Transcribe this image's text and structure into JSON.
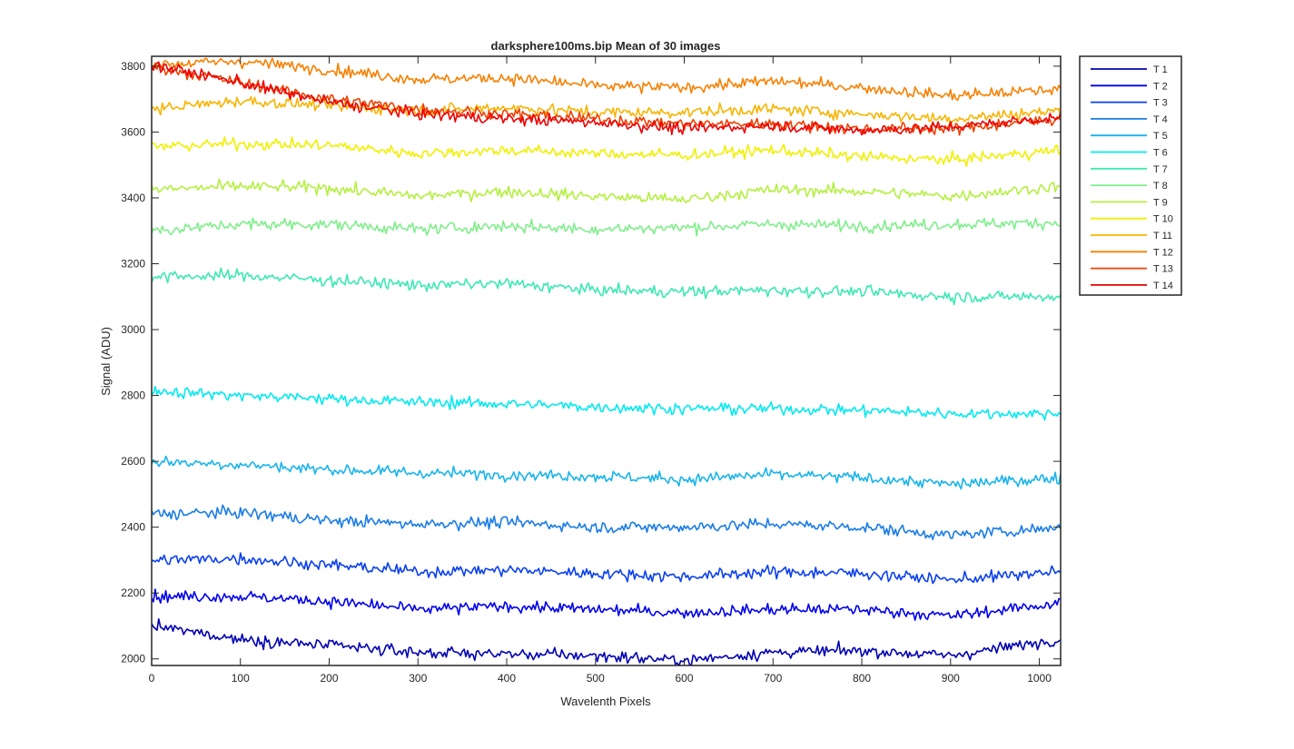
{
  "chart_data": {
    "type": "line",
    "title": "darksphere100ms.bip  Mean of 30 images",
    "xlabel": "Wavelenth Pixels",
    "ylabel": "Signal (ADU)",
    "xlim": [
      0,
      1024
    ],
    "ylim": [
      1980,
      3830
    ],
    "x_ticks": [
      0,
      100,
      200,
      300,
      400,
      500,
      600,
      700,
      800,
      900,
      1000
    ],
    "y_ticks": [
      2000,
      2200,
      2400,
      2600,
      2800,
      3000,
      3200,
      3400,
      3600,
      3800
    ],
    "grid": false,
    "legend_location": "outside-right",
    "x": [
      0,
      100,
      200,
      300,
      400,
      500,
      600,
      700,
      800,
      900,
      1024
    ],
    "noise_amplitude_adu": 12,
    "series": [
      {
        "name": "T 1",
        "color": "#0000b4",
        "values": [
          2100,
          2060,
          2040,
          2020,
          2015,
          2010,
          1995,
          2020,
          2025,
          2010,
          2060
        ]
      },
      {
        "name": "T 2",
        "color": "#0000ee",
        "values": [
          2190,
          2190,
          2175,
          2150,
          2160,
          2150,
          2140,
          2150,
          2150,
          2130,
          2170
        ]
      },
      {
        "name": "T 3",
        "color": "#0a40f0",
        "values": [
          2300,
          2305,
          2285,
          2265,
          2270,
          2260,
          2250,
          2265,
          2260,
          2240,
          2265
        ]
      },
      {
        "name": "T 4",
        "color": "#1a7ce8",
        "values": [
          2440,
          2445,
          2420,
          2410,
          2415,
          2400,
          2400,
          2410,
          2400,
          2375,
          2400
        ]
      },
      {
        "name": "T 5",
        "color": "#18b4ec",
        "values": [
          2600,
          2590,
          2575,
          2565,
          2560,
          2555,
          2545,
          2560,
          2550,
          2530,
          2550
        ]
      },
      {
        "name": "T 6",
        "color": "#00eaf0",
        "values": [
          2815,
          2800,
          2790,
          2780,
          2775,
          2765,
          2760,
          2760,
          2755,
          2745,
          2745
        ]
      },
      {
        "name": "T 7",
        "color": "#3ee8b4",
        "values": [
          3160,
          3165,
          3150,
          3135,
          3140,
          3120,
          3115,
          3120,
          3115,
          3100,
          3100
        ]
      },
      {
        "name": "T 8",
        "color": "#80ee8c",
        "values": [
          3300,
          3320,
          3320,
          3305,
          3315,
          3305,
          3310,
          3320,
          3315,
          3320,
          3325
        ]
      },
      {
        "name": "T 9",
        "color": "#b4f040",
        "values": [
          3425,
          3435,
          3430,
          3405,
          3420,
          3405,
          3395,
          3425,
          3420,
          3405,
          3435
        ]
      },
      {
        "name": "T 10",
        "color": "#f0f000",
        "values": [
          3555,
          3565,
          3560,
          3535,
          3545,
          3535,
          3530,
          3545,
          3525,
          3515,
          3545
        ]
      },
      {
        "name": "T 11",
        "color": "#f8b400",
        "values": [
          3670,
          3695,
          3680,
          3665,
          3675,
          3660,
          3660,
          3670,
          3655,
          3640,
          3665
        ]
      },
      {
        "name": "T 12",
        "color": "#f88000",
        "values": [
          3805,
          3815,
          3790,
          3760,
          3765,
          3740,
          3735,
          3755,
          3735,
          3710,
          3730
        ]
      },
      {
        "name": "T 13",
        "color": "#f04000",
        "values": [
          3800,
          3750,
          3700,
          3670,
          3655,
          3640,
          3625,
          3625,
          3610,
          3610,
          3640
        ]
      },
      {
        "name": "T 14",
        "color": "#ee0000",
        "values": [
          3805,
          3750,
          3690,
          3655,
          3640,
          3630,
          3610,
          3620,
          3605,
          3615,
          3645
        ]
      }
    ]
  }
}
